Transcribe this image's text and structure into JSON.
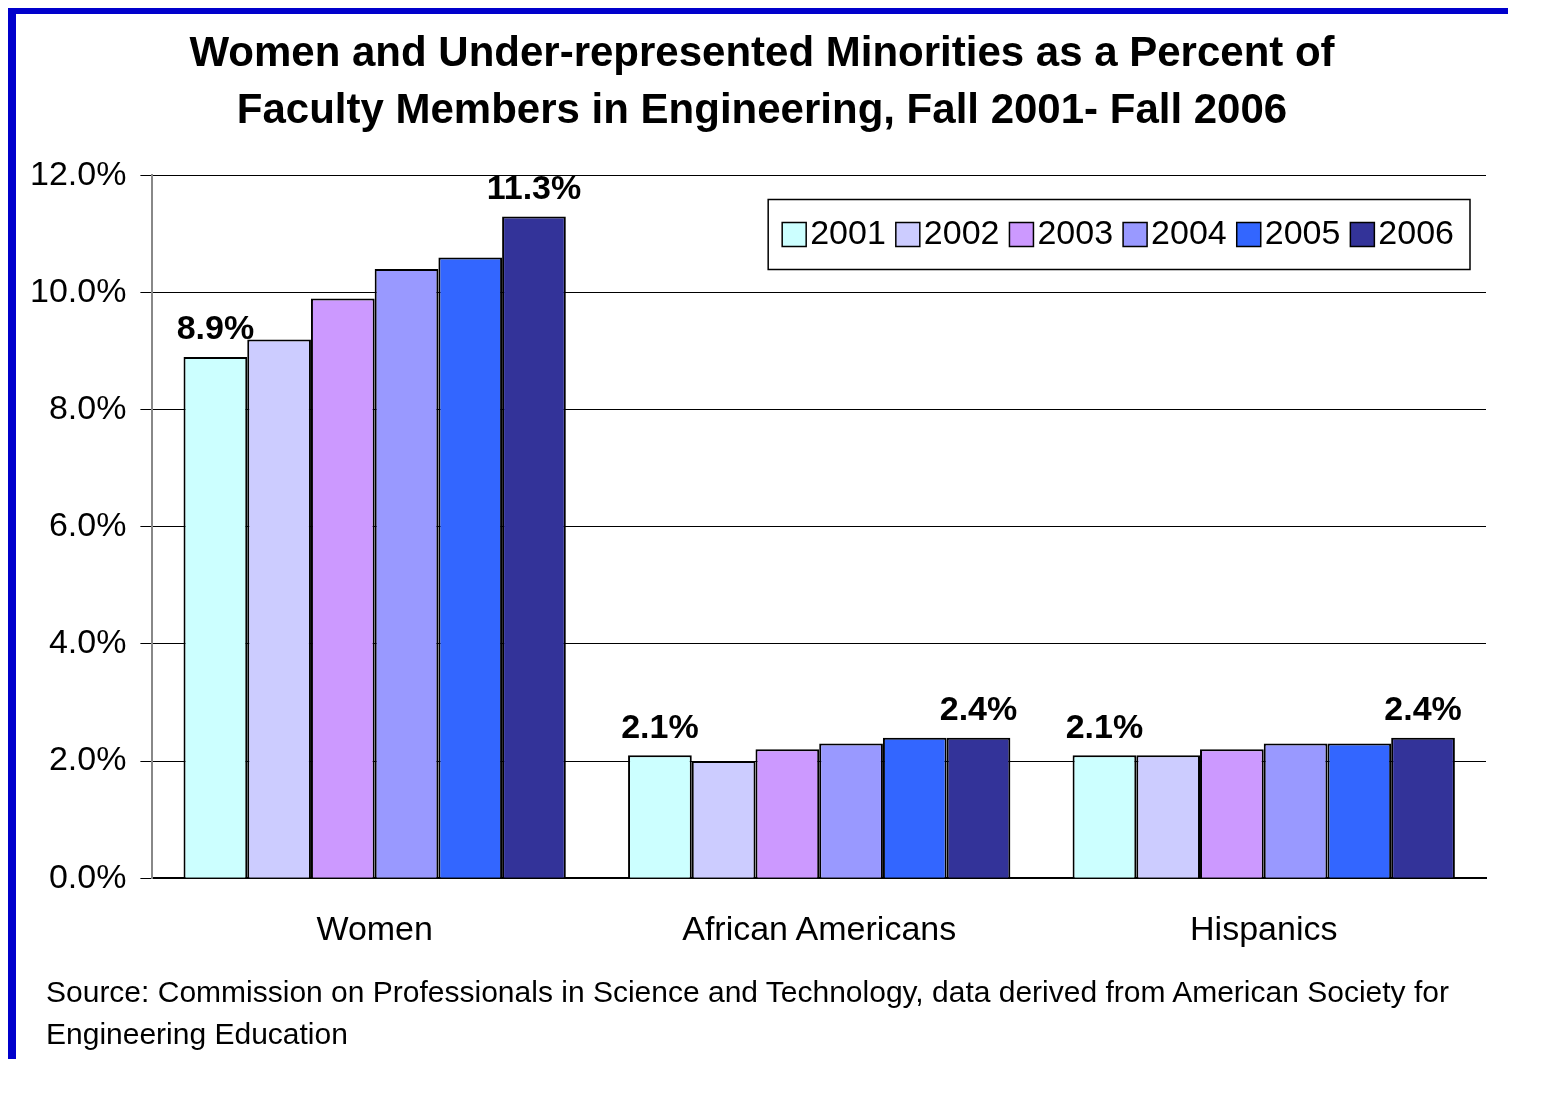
{
  "chart_data": {
    "type": "bar",
    "title": "Women and Under-represented Minorities as a Percent of Faculty Members in Engineering, Fall 2001- Fall 2006",
    "categories": [
      "Women",
      "African Americans",
      "Hispanics"
    ],
    "series": [
      {
        "name": "2001",
        "color": "#ccffff",
        "values": [
          8.9,
          2.1,
          2.1
        ],
        "value_labels": [
          "8.9%",
          "2.1%",
          "2.1%"
        ]
      },
      {
        "name": "2002",
        "color": "#ccccff",
        "values": [
          9.2,
          2.0,
          2.1
        ]
      },
      {
        "name": "2003",
        "color": "#cc99ff",
        "values": [
          9.9,
          2.2,
          2.2
        ]
      },
      {
        "name": "2004",
        "color": "#9999ff",
        "values": [
          10.4,
          2.3,
          2.3
        ]
      },
      {
        "name": "2005",
        "color": "#3366ff",
        "values": [
          10.6,
          2.4,
          2.3
        ]
      },
      {
        "name": "2006",
        "color": "#333399",
        "values": [
          11.3,
          2.4,
          2.4
        ],
        "value_labels": [
          "11.3%",
          "2.4%",
          "2.4%"
        ]
      }
    ],
    "ylim": [
      0,
      12
    ],
    "yticks": [
      {
        "value": 0,
        "label": "0.0%"
      },
      {
        "value": 2,
        "label": "2.0%"
      },
      {
        "value": 4,
        "label": "4.0%"
      },
      {
        "value": 6,
        "label": "6.0%"
      },
      {
        "value": 8,
        "label": "8.0%"
      },
      {
        "value": 10,
        "label": "10.0%"
      },
      {
        "value": 12,
        "label": "12.0%"
      }
    ],
    "grid": "y",
    "legend": "top right",
    "annotations": [
      "Source: Commission on Professionals in Science and Technology, data derived from American Society for Engineering Education"
    ]
  }
}
